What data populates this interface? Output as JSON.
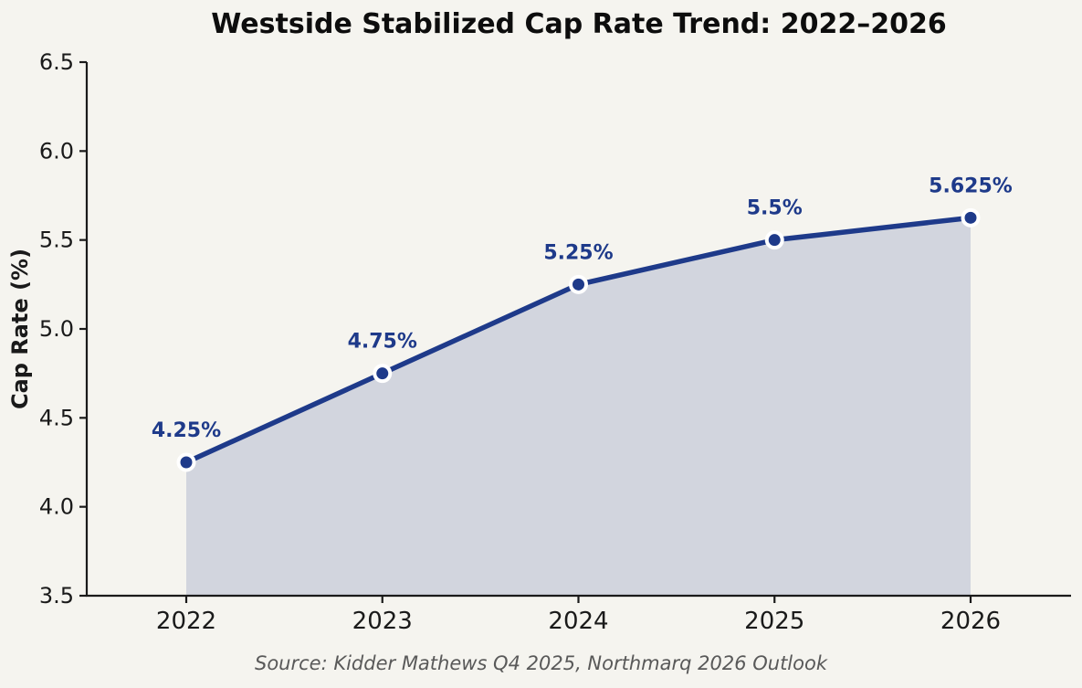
{
  "chart_data": {
    "type": "area",
    "title": "Westside Stabilized Cap Rate Trend: 2022–2026",
    "ylabel": "Cap Rate (%)",
    "xlabel": "",
    "categories": [
      "2022",
      "2023",
      "2024",
      "2025",
      "2026"
    ],
    "values": [
      4.25,
      4.75,
      5.25,
      5.5,
      5.625
    ],
    "point_labels": [
      "4.25%",
      "4.75%",
      "5.25%",
      "5.5%",
      "5.625%"
    ],
    "ylim": [
      3.5,
      6.5
    ],
    "yticks": [
      3.5,
      4.0,
      4.5,
      5.0,
      5.5,
      6.0,
      6.5
    ],
    "ytick_labels": [
      "3.5",
      "4.0",
      "4.5",
      "5.0",
      "5.5",
      "6.0",
      "6.5"
    ],
    "grid": false,
    "legend": "none",
    "source": "Source: Kidder Mathews Q4 2025, Northmarq 2026 Outlook",
    "colors": {
      "background": "#f5f4ef",
      "line": "#1e3a8a",
      "area_fill": "rgba(30,58,138,0.16)",
      "marker": "#1e3a8a",
      "marker_edge": "#ffffff",
      "point_label": "#1e3a8a",
      "axis": "#1a1a1a",
      "tick_text": "#1a1a1a",
      "source_text": "#595959"
    }
  }
}
